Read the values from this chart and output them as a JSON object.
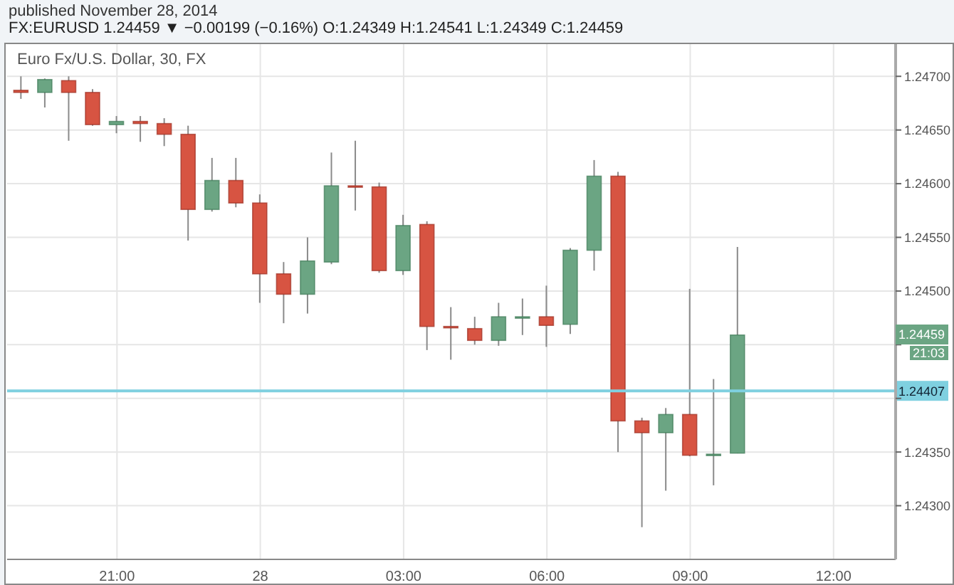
{
  "chart_data": {
    "type": "candlestick",
    "title": "Euro Fx/U.S. Dollar, 30, FX",
    "subtitle": "published November 28, 2014",
    "annotations": [
      "FX:EURUSD 1.24459 ▼ −0.00199 (−0.16%) O:1.24349 H:1.24541 L:1.24349 C:1.24459",
      {
        "text": "1.24459",
        "y": 1.24459
      },
      "21:03"
    ],
    "x": [
      "2014-11-27T19:00",
      "2014-11-27T19:30",
      "2014-11-27T20:00",
      "2014-11-27T20:30",
      "2014-11-27T21:00",
      "2014-11-27T21:30",
      "2014-11-27T22:00",
      "2014-11-27T22:30",
      "2014-11-27T23:00",
      "2014-11-27T23:30",
      "2014-11-28T00:00",
      "2014-11-28T00:30",
      "2014-11-28T01:00",
      "2014-11-28T01:30",
      "2014-11-28T02:00",
      "2014-11-28T02:30",
      "2014-11-28T03:00",
      "2014-11-28T03:30",
      "2014-11-28T04:00",
      "2014-11-28T04:30",
      "2014-11-28T05:00",
      "2014-11-28T05:30",
      "2014-11-28T06:00",
      "2014-11-28T06:30",
      "2014-11-28T07:00",
      "2014-11-28T07:30",
      "2014-11-28T08:00",
      "2014-11-28T08:30",
      "2014-11-28T09:00",
      "2014-11-28T09:30",
      "2014-11-28T10:00"
    ],
    "ohlc": [
      [
        1.24687,
        1.247,
        1.24679,
        1.24685
      ],
      [
        1.24685,
        1.24698,
        1.24671,
        1.24697
      ],
      [
        1.24696,
        1.247,
        1.2464,
        1.24685
      ],
      [
        1.24685,
        1.24688,
        1.24654,
        1.24655
      ],
      [
        1.24655,
        1.24663,
        1.24647,
        1.24658
      ],
      [
        1.24658,
        1.24663,
        1.24639,
        1.24656
      ],
      [
        1.24656,
        1.24661,
        1.24635,
        1.24646
      ],
      [
        1.24646,
        1.24654,
        1.24547,
        1.24576
      ],
      [
        1.24576,
        1.24624,
        1.24574,
        1.24603
      ],
      [
        1.24603,
        1.24624,
        1.24578,
        1.24582
      ],
      [
        1.24582,
        1.2459,
        1.24489,
        1.24516
      ],
      [
        1.24516,
        1.24527,
        1.2447,
        1.24497
      ],
      [
        1.24497,
        1.2455,
        1.24479,
        1.24528
      ],
      [
        1.24527,
        1.24629,
        1.24525,
        1.24598
      ],
      [
        1.24598,
        1.2464,
        1.24575,
        1.24597
      ],
      [
        1.24597,
        1.24601,
        1.24517,
        1.24519
      ],
      [
        1.24519,
        1.24571,
        1.24515,
        1.24561
      ],
      [
        1.24562,
        1.24565,
        1.24445,
        1.24467
      ],
      [
        1.24467,
        1.24485,
        1.24436,
        1.24466
      ],
      [
        1.24465,
        1.24476,
        1.2445,
        1.24454
      ],
      [
        1.24454,
        1.24489,
        1.24449,
        1.24476
      ],
      [
        1.24475,
        1.24493,
        1.24459,
        1.24476
      ],
      [
        1.24476,
        1.24505,
        1.24448,
        1.24468
      ],
      [
        1.24469,
        1.2454,
        1.2446,
        1.24538
      ],
      [
        1.24538,
        1.24622,
        1.24519,
        1.24607
      ],
      [
        1.24607,
        1.24611,
        1.2435,
        1.24379
      ],
      [
        1.24379,
        1.24382,
        1.2428,
        1.24368
      ],
      [
        1.24368,
        1.24391,
        1.24314,
        1.24385
      ],
      [
        1.24385,
        1.24502,
        1.24346,
        1.24347
      ],
      [
        1.24347,
        1.24418,
        1.24319,
        1.24348
      ],
      [
        1.24349,
        1.24541,
        1.24349,
        1.24459
      ]
    ],
    "colors": [
      "#d75442",
      "#6ba583",
      "#d75442",
      "#d75442",
      "#6ba583",
      "#d75442",
      "#d75442",
      "#d75442",
      "#6ba583",
      "#d75442",
      "#d75442",
      "#d75442",
      "#6ba583",
      "#6ba583",
      "#d75442",
      "#d75442",
      "#6ba583",
      "#d75442",
      "#d75442",
      "#d75442",
      "#6ba583",
      "#6ba583",
      "#d75442",
      "#6ba583",
      "#6ba583",
      "#d75442",
      "#d75442",
      "#6ba583",
      "#d75442",
      "#6ba583",
      "#6ba583"
    ],
    "xlim": [
      "2014-11-27T18:42",
      "2014-11-28T13:18"
    ],
    "xticks": [
      {
        "value": "2014-11-27T21:00",
        "label": "21:00"
      },
      {
        "value": "2014-11-28T00:00",
        "label": "28"
      },
      {
        "value": "2014-11-28T03:00",
        "label": "03:00"
      },
      {
        "value": "2014-11-28T06:00",
        "label": "06:00"
      },
      {
        "value": "2014-11-28T09:00",
        "label": "09:00"
      },
      {
        "value": "2014-11-28T12:00",
        "label": "12:00"
      }
    ],
    "ylim": [
      1.2425,
      1.2473
    ],
    "yticks": [
      {
        "value": 1.243,
        "label": "1.24300"
      },
      {
        "value": 1.2435,
        "label": "1.24350"
      },
      {
        "value": 1.244,
        "label": null
      },
      {
        "value": 1.2445,
        "label": null
      },
      {
        "value": 1.245,
        "label": "1.24500"
      },
      {
        "value": 1.2455,
        "label": "1.24550"
      },
      {
        "value": 1.246,
        "label": "1.24600"
      },
      {
        "value": 1.2465,
        "label": "1.24650"
      },
      {
        "value": 1.247,
        "label": "1.24700"
      }
    ],
    "ref_lines": [
      {
        "axis": "y",
        "value": 1.24407,
        "label": "1.24407",
        "color": "#7fd0e0"
      }
    ],
    "grid": true
  }
}
